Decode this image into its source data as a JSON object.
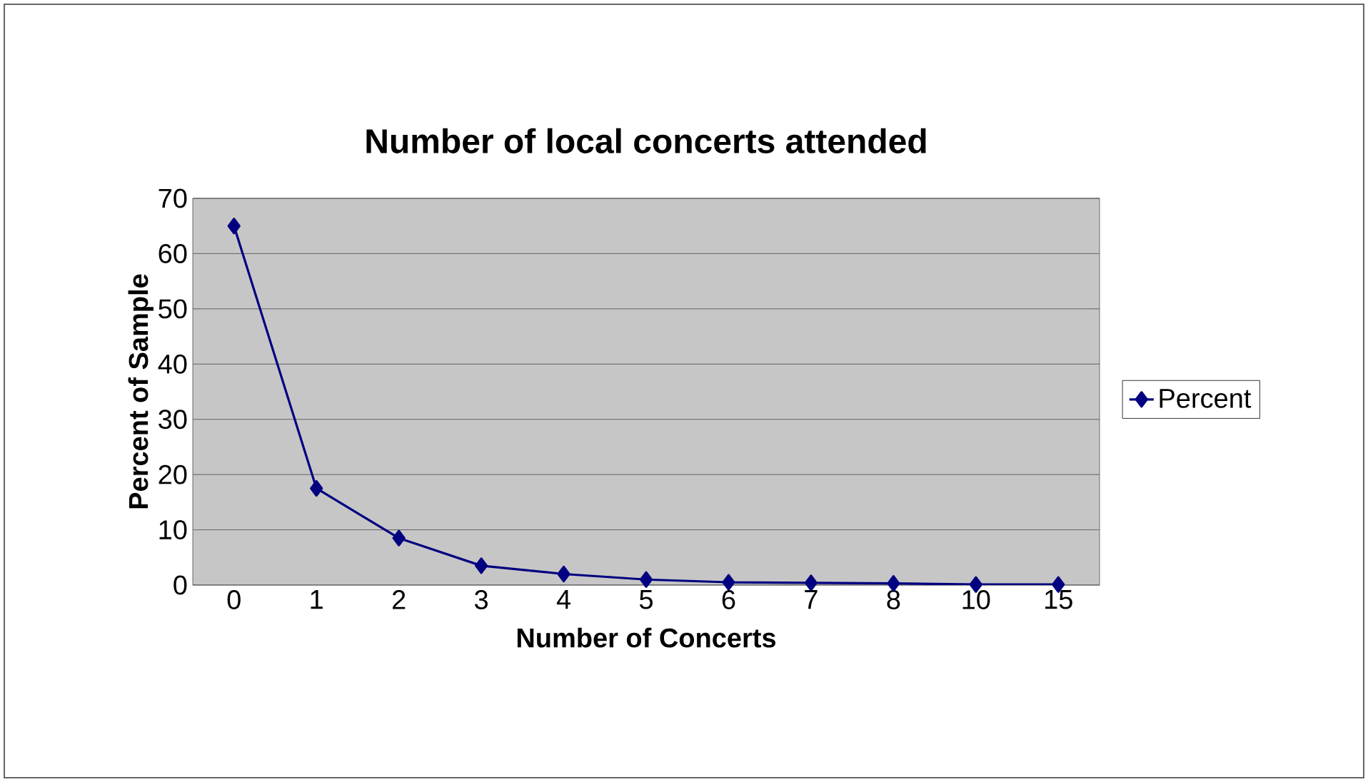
{
  "chart_data": {
    "type": "line",
    "title": "Number of local concerts attended",
    "xlabel": "Number of Concerts",
    "ylabel": "Percent of Sample",
    "categories": [
      "0",
      "1",
      "2",
      "3",
      "4",
      "5",
      "6",
      "7",
      "8",
      "10",
      "15"
    ],
    "series": [
      {
        "name": "Percent",
        "color": "#000080",
        "values": [
          65,
          17.5,
          8.5,
          3.5,
          2,
          1,
          0.5,
          0.4,
          0.3,
          0.1,
          0.1
        ]
      }
    ],
    "ylim": [
      0,
      70
    ],
    "yticks": [
      0,
      10,
      20,
      30,
      40,
      50,
      60,
      70
    ],
    "grid": "y",
    "legend": "right",
    "marker": "diamond",
    "line_style": "solid"
  }
}
